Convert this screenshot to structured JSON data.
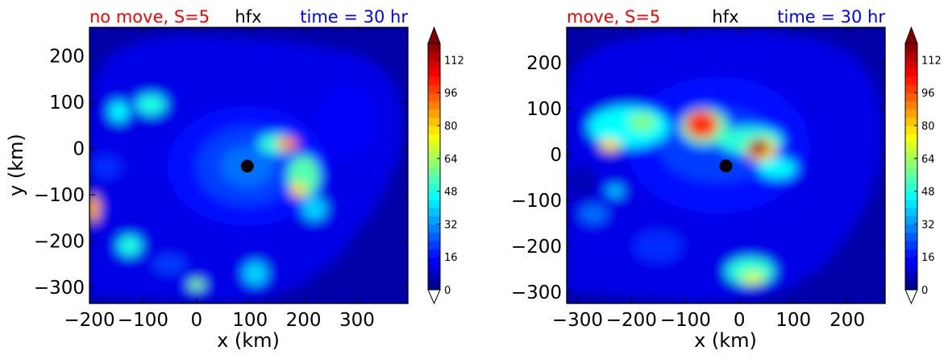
{
  "figure": {
    "colors": {
      "left_title": "#ff0000",
      "center_title": "#000000",
      "right_title": "#0000ff",
      "marker": "#000000"
    }
  },
  "colorbar": {
    "ticks": [
      "0",
      "16",
      "32",
      "48",
      "64",
      "80",
      "96",
      "112"
    ],
    "min": 0,
    "max": 120,
    "extend": "both",
    "colormap": "jet"
  },
  "chart_data": [
    {
      "type": "heatmap",
      "title_left": "no move, S=5",
      "title_center": "hfx",
      "title_right": "time = 30 hr",
      "xlabel": "x (km)",
      "ylabel": "y (km)",
      "xlim": [
        -200,
        395
      ],
      "ylim": [
        -335,
        262
      ],
      "xticks": [
        -200,
        -100,
        0,
        100,
        200,
        300
      ],
      "xtick_labels": [
        "−200",
        "−100",
        "0",
        "100",
        "200",
        "300"
      ],
      "yticks": [
        200,
        100,
        0,
        -100,
        -200,
        -300
      ],
      "ytick_labels": [
        "200",
        "100",
        "0",
        "−100",
        "−200",
        "−300"
      ],
      "center_marker": {
        "x": 95,
        "y": -38
      },
      "field": {
        "domain": {
          "x0": -200,
          "x1": 395,
          "y0": -335,
          "y1": 262
        },
        "clip_outline": [
          [
            -200,
            40
          ],
          [
            -190,
            150
          ],
          [
            -160,
            205
          ],
          [
            -100,
            235
          ],
          [
            -20,
            245
          ],
          [
            60,
            240
          ],
          [
            150,
            235
          ],
          [
            230,
            220
          ],
          [
            290,
            210
          ],
          [
            340,
            180
          ],
          [
            370,
            140
          ],
          [
            385,
            80
          ],
          [
            380,
            -20
          ],
          [
            360,
            -60
          ],
          [
            340,
            -120
          ],
          [
            300,
            -180
          ],
          [
            260,
            -240
          ],
          [
            190,
            -300
          ],
          [
            100,
            -330
          ],
          [
            0,
            -330
          ],
          [
            -100,
            -325
          ],
          [
            -200,
            -320
          ]
        ],
        "background_level": 8,
        "outer_level": 12,
        "features": [
          {
            "x": 95,
            "y": -38,
            "rx": 150,
            "ry": 130,
            "level": 16
          },
          {
            "x": 95,
            "y": -38,
            "rx": 95,
            "ry": 85,
            "level": 22
          },
          {
            "x": 95,
            "y": -38,
            "rx": 50,
            "ry": 45,
            "level": 28
          },
          {
            "x": 150,
            "y": 10,
            "rx": 35,
            "ry": 22,
            "level": 50
          },
          {
            "x": 170,
            "y": 10,
            "rx": 20,
            "ry": 14,
            "level": 90
          },
          {
            "x": 200,
            "y": -60,
            "rx": 30,
            "ry": 45,
            "level": 55
          },
          {
            "x": 190,
            "y": -90,
            "rx": 14,
            "ry": 16,
            "level": 80
          },
          {
            "x": 220,
            "y": -130,
            "rx": 22,
            "ry": 25,
            "level": 40
          },
          {
            "x": -145,
            "y": 80,
            "rx": 18,
            "ry": 22,
            "level": 45
          },
          {
            "x": -85,
            "y": 95,
            "rx": 28,
            "ry": 22,
            "level": 48
          },
          {
            "x": -195,
            "y": -130,
            "rx": 14,
            "ry": 30,
            "level": 85
          },
          {
            "x": -125,
            "y": -210,
            "rx": 22,
            "ry": 22,
            "level": 48
          },
          {
            "x": 0,
            "y": -295,
            "rx": 16,
            "ry": 12,
            "level": 60
          },
          {
            "x": 110,
            "y": -270,
            "rx": 22,
            "ry": 25,
            "level": 40
          },
          {
            "x": -50,
            "y": -250,
            "rx": 30,
            "ry": 20,
            "level": 22
          },
          {
            "x": -170,
            "y": -40,
            "rx": 30,
            "ry": 25,
            "level": 20
          },
          {
            "x": 280,
            "y": 60,
            "rx": 60,
            "ry": 80,
            "level": 14
          }
        ]
      }
    },
    {
      "type": "heatmap",
      "title_left": "move, S=5",
      "title_center": "hfx",
      "title_right": "time = 30 hr",
      "xlabel": "x (km)",
      "ylabel": "",
      "xlim": [
        -320,
        270
      ],
      "ylim": [
        -325,
        277
      ],
      "xticks": [
        -300,
        -200,
        -100,
        0,
        100,
        200
      ],
      "xtick_labels": [
        "−300",
        "−200",
        "−100",
        "0",
        "100",
        "200"
      ],
      "yticks": [
        200,
        100,
        0,
        -100,
        -200,
        -300
      ],
      "ytick_labels": [
        "200",
        "100",
        "0",
        "−100",
        "−200",
        "−300"
      ],
      "center_marker": {
        "x": -25,
        "y": -25
      },
      "field": {
        "domain": {
          "x0": -320,
          "x1": 270,
          "y0": -325,
          "y1": 277
        },
        "clip_outline": [
          [
            -320,
            150
          ],
          [
            -300,
            200
          ],
          [
            -250,
            240
          ],
          [
            -150,
            265
          ],
          [
            -50,
            270
          ],
          [
            50,
            268
          ],
          [
            150,
            250
          ],
          [
            210,
            220
          ],
          [
            250,
            160
          ],
          [
            265,
            80
          ],
          [
            260,
            -20
          ],
          [
            240,
            -100
          ],
          [
            200,
            -180
          ],
          [
            150,
            -250
          ],
          [
            80,
            -300
          ],
          [
            0,
            -320
          ],
          [
            -100,
            -320
          ],
          [
            -200,
            -310
          ],
          [
            -320,
            -300
          ]
        ],
        "background_level": 8,
        "outer_level": 12,
        "features": [
          {
            "x": -40,
            "y": 20,
            "rx": 170,
            "ry": 150,
            "level": 16
          },
          {
            "x": -40,
            "y": 20,
            "rx": 110,
            "ry": 80,
            "level": 22
          },
          {
            "x": -205,
            "y": 60,
            "rx": 75,
            "ry": 45,
            "level": 45
          },
          {
            "x": -180,
            "y": 70,
            "rx": 25,
            "ry": 20,
            "level": 60
          },
          {
            "x": -240,
            "y": 20,
            "rx": 18,
            "ry": 14,
            "level": 80
          },
          {
            "x": -65,
            "y": 60,
            "rx": 45,
            "ry": 40,
            "level": 55
          },
          {
            "x": -70,
            "y": 65,
            "rx": 30,
            "ry": 30,
            "level": 100
          },
          {
            "x": 20,
            "y": 30,
            "rx": 60,
            "ry": 30,
            "level": 50
          },
          {
            "x": 40,
            "y": 10,
            "rx": 28,
            "ry": 25,
            "level": 80
          },
          {
            "x": 35,
            "y": 15,
            "rx": 18,
            "ry": 18,
            "level": 115
          },
          {
            "x": 70,
            "y": -30,
            "rx": 35,
            "ry": 22,
            "level": 45
          },
          {
            "x": 20,
            "y": -255,
            "rx": 45,
            "ry": 30,
            "level": 50
          },
          {
            "x": 25,
            "y": -270,
            "rx": 20,
            "ry": 14,
            "level": 70
          },
          {
            "x": -230,
            "y": -80,
            "rx": 15,
            "ry": 12,
            "level": 40
          },
          {
            "x": -270,
            "y": -130,
            "rx": 25,
            "ry": 20,
            "level": 28
          },
          {
            "x": -150,
            "y": -200,
            "rx": 45,
            "ry": 35,
            "level": 20
          },
          {
            "x": -290,
            "y": -60,
            "rx": 25,
            "ry": 40,
            "level": 6
          }
        ]
      }
    }
  ]
}
